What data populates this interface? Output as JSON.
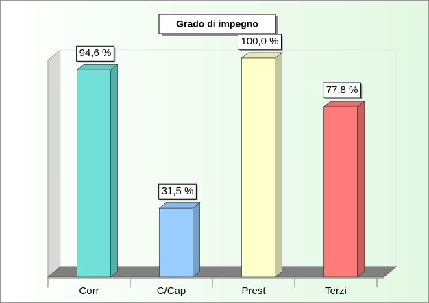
{
  "chart_data": {
    "type": "bar3d",
    "title": "Grado di impegno",
    "categories": [
      "Corr",
      "C/Cap",
      "Prest",
      "Terzi"
    ],
    "values": [
      94.6,
      31.5,
      100,
      77.8
    ],
    "value_labels": [
      "94,6 %",
      "31,5 %",
      "100,0 %",
      "77,8 %"
    ],
    "colors": [
      "#70e0d8",
      "#99ccff",
      "#ffffcc",
      "#ff7a7a"
    ],
    "ylim": [
      0,
      100
    ]
  }
}
